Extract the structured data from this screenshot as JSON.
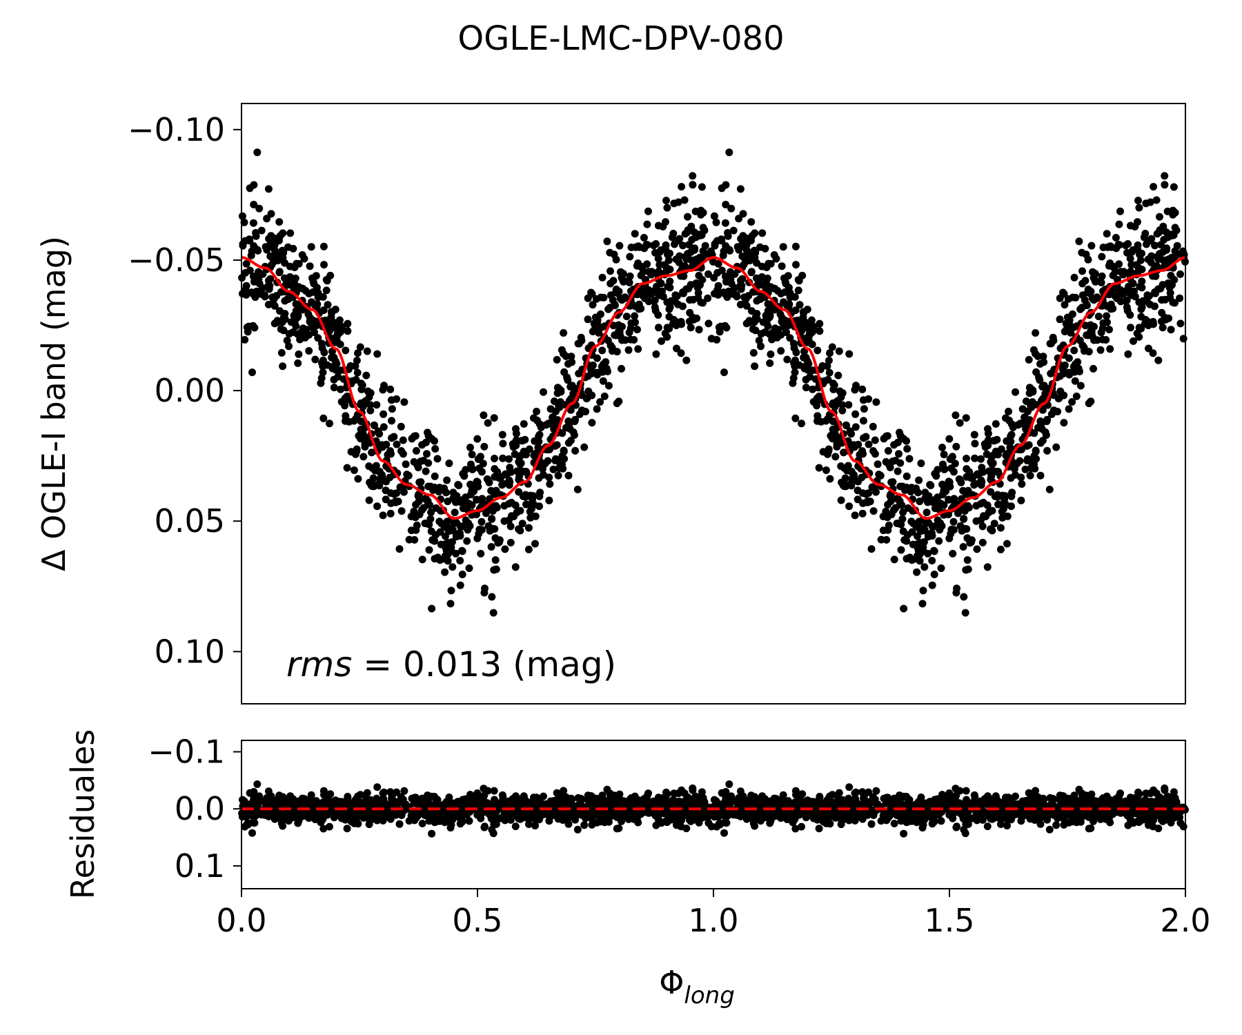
{
  "chart_data": {
    "type": "scatter",
    "title": "OGLE-LMC-DPV-080",
    "x": {
      "label_main": "Φ",
      "label_sub": "long",
      "lim": [
        0.0,
        2.0
      ],
      "ticks": [
        0.0,
        0.5,
        1.0,
        1.5,
        2.0
      ],
      "tick_labels": [
        "0.0",
        "0.5",
        "1.0",
        "1.5",
        "2.0"
      ]
    },
    "main_panel": {
      "ylabel": "Δ OGLE-I band (mag)",
      "ylim": [
        -0.11,
        0.12
      ],
      "inverted": true,
      "yticks": [
        -0.1,
        -0.05,
        0.0,
        0.05,
        0.1
      ],
      "ytick_labels": [
        "−0.10",
        "−0.05",
        "0.00",
        "0.05",
        "0.10"
      ],
      "annotation_italic": "rms",
      "annotation_rest": " = 0.013 (mag)",
      "series": [
        {
          "name": "OGLE-I observations",
          "kind": "scatter",
          "color": "#000000",
          "model": "phase-folded light curve, 2 cycles, scatter about fit",
          "point_count": 2400,
          "sigma": 0.013
        },
        {
          "name": "Fourier fit",
          "kind": "line",
          "color": "#ff0000",
          "phase": [
            0.0,
            0.05,
            0.1,
            0.15,
            0.2,
            0.25,
            0.3,
            0.35,
            0.4,
            0.45,
            0.5,
            0.55,
            0.6,
            0.65,
            0.7,
            0.75,
            0.8,
            0.85,
            0.9,
            0.95,
            1.0
          ],
          "values": [
            -0.051,
            -0.047,
            -0.038,
            -0.031,
            -0.016,
            0.008,
            0.027,
            0.036,
            0.04,
            0.049,
            0.046,
            0.041,
            0.035,
            0.021,
            0.005,
            -0.017,
            -0.03,
            -0.041,
            -0.044,
            -0.046,
            -0.051
          ]
        }
      ]
    },
    "residual_panel": {
      "ylabel": "Residuales",
      "ylim": [
        -0.12,
        0.14
      ],
      "inverted": true,
      "yticks": [
        -0.1,
        0.0,
        0.1
      ],
      "ytick_labels": [
        "−0.1",
        "0.0",
        "0.1"
      ],
      "series": [
        {
          "name": "residuals",
          "kind": "scatter",
          "color": "#000000",
          "sigma": 0.013
        },
        {
          "name": "zero line",
          "kind": "dashed-line",
          "color": "#ff0000",
          "value": 0.0
        }
      ]
    }
  }
}
